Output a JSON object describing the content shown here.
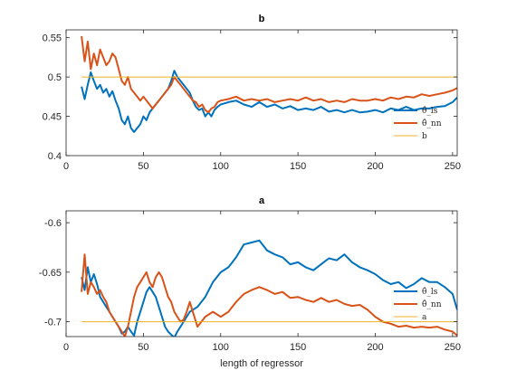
{
  "chart_data": [
    {
      "type": "line",
      "title": "b",
      "xlabel": "",
      "ylabel": "",
      "xlim": [
        0,
        253
      ],
      "ylim": [
        0.4,
        0.56
      ],
      "xticks": [
        "0",
        "50",
        "100",
        "150",
        "200",
        "250"
      ],
      "yticks": [
        "0.4",
        "0.45",
        "0.5",
        "0.55"
      ],
      "legend_position": "bottom-right",
      "grid": false,
      "series": [
        {
          "name": "θ̂_ls",
          "color": "#0072BD",
          "x": [
            10,
            12,
            14,
            16,
            18,
            20,
            22,
            24,
            26,
            28,
            30,
            32,
            34,
            36,
            38,
            40,
            42,
            44,
            46,
            48,
            50,
            52,
            54,
            56,
            58,
            60,
            62,
            64,
            66,
            68,
            70,
            72,
            74,
            76,
            78,
            80,
            82,
            84,
            86,
            88,
            90,
            92,
            94,
            96,
            98,
            100,
            105,
            110,
            115,
            120,
            125,
            130,
            135,
            140,
            145,
            150,
            155,
            160,
            165,
            170,
            175,
            180,
            185,
            190,
            195,
            200,
            205,
            210,
            215,
            220,
            225,
            230,
            235,
            240,
            245,
            250,
            253
          ],
          "y": [
            0.488,
            0.472,
            0.49,
            0.506,
            0.495,
            0.485,
            0.49,
            0.48,
            0.485,
            0.475,
            0.482,
            0.47,
            0.46,
            0.445,
            0.44,
            0.45,
            0.435,
            0.43,
            0.435,
            0.44,
            0.45,
            0.445,
            0.455,
            0.46,
            0.465,
            0.47,
            0.475,
            0.48,
            0.485,
            0.495,
            0.508,
            0.5,
            0.495,
            0.49,
            0.485,
            0.48,
            0.47,
            0.462,
            0.458,
            0.46,
            0.45,
            0.455,
            0.45,
            0.458,
            0.462,
            0.465,
            0.468,
            0.47,
            0.465,
            0.462,
            0.468,
            0.462,
            0.465,
            0.46,
            0.463,
            0.458,
            0.46,
            0.458,
            0.462,
            0.456,
            0.458,
            0.455,
            0.458,
            0.455,
            0.456,
            0.458,
            0.455,
            0.46,
            0.458,
            0.462,
            0.458,
            0.46,
            0.46,
            0.462,
            0.463,
            0.468,
            0.474
          ]
        },
        {
          "name": "θ̂_nn",
          "color": "#D95319",
          "x": [
            10,
            12,
            14,
            16,
            18,
            20,
            22,
            24,
            26,
            28,
            30,
            32,
            34,
            36,
            38,
            40,
            42,
            44,
            46,
            48,
            50,
            52,
            54,
            56,
            58,
            60,
            62,
            64,
            66,
            68,
            70,
            72,
            74,
            76,
            78,
            80,
            82,
            84,
            86,
            88,
            90,
            92,
            94,
            96,
            98,
            100,
            105,
            110,
            115,
            120,
            125,
            130,
            135,
            140,
            145,
            150,
            155,
            160,
            165,
            170,
            175,
            180,
            185,
            190,
            195,
            200,
            205,
            210,
            215,
            220,
            225,
            230,
            235,
            240,
            245,
            250,
            253
          ],
          "y": [
            0.552,
            0.52,
            0.545,
            0.51,
            0.53,
            0.515,
            0.535,
            0.525,
            0.515,
            0.52,
            0.53,
            0.525,
            0.51,
            0.495,
            0.49,
            0.5,
            0.485,
            0.48,
            0.475,
            0.47,
            0.475,
            0.47,
            0.465,
            0.46,
            0.465,
            0.47,
            0.475,
            0.48,
            0.485,
            0.49,
            0.5,
            0.495,
            0.49,
            0.485,
            0.48,
            0.475,
            0.47,
            0.468,
            0.462,
            0.465,
            0.458,
            0.455,
            0.46,
            0.462,
            0.468,
            0.47,
            0.472,
            0.475,
            0.47,
            0.472,
            0.47,
            0.472,
            0.468,
            0.47,
            0.472,
            0.47,
            0.474,
            0.47,
            0.472,
            0.468,
            0.47,
            0.468,
            0.472,
            0.47,
            0.47,
            0.472,
            0.47,
            0.474,
            0.472,
            0.475,
            0.474,
            0.478,
            0.476,
            0.478,
            0.48,
            0.483,
            0.486
          ]
        },
        {
          "name": "b",
          "color": "#EDB120",
          "x": [
            10,
            253
          ],
          "y": [
            0.5,
            0.5
          ]
        }
      ]
    },
    {
      "type": "line",
      "title": "a",
      "xlabel": "length of regressor",
      "ylabel": "",
      "xlim": [
        0,
        253
      ],
      "ylim": [
        -0.715,
        -0.588
      ],
      "xticks": [
        "0",
        "50",
        "100",
        "150",
        "200",
        "250"
      ],
      "yticks": [
        "-0.6",
        "-0.65",
        "-0.7"
      ],
      "legend_position": "bottom-right",
      "grid": false,
      "series": [
        {
          "name": "θ̂_ls",
          "color": "#0072BD",
          "x": [
            10,
            12,
            14,
            16,
            18,
            20,
            22,
            24,
            26,
            28,
            30,
            32,
            34,
            36,
            38,
            40,
            42,
            44,
            46,
            48,
            50,
            52,
            54,
            56,
            58,
            60,
            62,
            64,
            66,
            68,
            70,
            72,
            74,
            76,
            78,
            80,
            85,
            90,
            95,
            100,
            105,
            110,
            115,
            120,
            125,
            130,
            135,
            140,
            145,
            150,
            155,
            160,
            165,
            170,
            175,
            180,
            185,
            190,
            195,
            200,
            205,
            210,
            215,
            220,
            225,
            230,
            235,
            240,
            245,
            250,
            253
          ],
          "y": [
            -0.655,
            -0.668,
            -0.645,
            -0.66,
            -0.652,
            -0.662,
            -0.675,
            -0.68,
            -0.685,
            -0.69,
            -0.695,
            -0.7,
            -0.705,
            -0.712,
            -0.71,
            -0.705,
            -0.71,
            -0.714,
            -0.7,
            -0.69,
            -0.68,
            -0.67,
            -0.665,
            -0.67,
            -0.675,
            -0.685,
            -0.695,
            -0.705,
            -0.71,
            -0.713,
            -0.716,
            -0.71,
            -0.705,
            -0.7,
            -0.695,
            -0.69,
            -0.685,
            -0.675,
            -0.66,
            -0.65,
            -0.645,
            -0.635,
            -0.622,
            -0.62,
            -0.618,
            -0.628,
            -0.632,
            -0.635,
            -0.642,
            -0.64,
            -0.645,
            -0.648,
            -0.642,
            -0.636,
            -0.638,
            -0.632,
            -0.64,
            -0.645,
            -0.648,
            -0.652,
            -0.658,
            -0.662,
            -0.66,
            -0.666,
            -0.662,
            -0.656,
            -0.66,
            -0.66,
            -0.665,
            -0.672,
            -0.688
          ]
        },
        {
          "name": "θ̂_nn",
          "color": "#D95319",
          "x": [
            10,
            12,
            14,
            16,
            18,
            20,
            22,
            24,
            26,
            28,
            30,
            32,
            34,
            36,
            38,
            40,
            42,
            44,
            46,
            48,
            50,
            52,
            54,
            56,
            58,
            60,
            62,
            64,
            66,
            68,
            70,
            72,
            74,
            76,
            78,
            80,
            85,
            90,
            95,
            100,
            105,
            110,
            115,
            120,
            125,
            130,
            135,
            140,
            145,
            150,
            155,
            160,
            165,
            170,
            175,
            180,
            185,
            190,
            195,
            200,
            205,
            210,
            215,
            220,
            225,
            230,
            235,
            240,
            245,
            250,
            253
          ],
          "y": [
            -0.67,
            -0.632,
            -0.672,
            -0.66,
            -0.665,
            -0.672,
            -0.668,
            -0.675,
            -0.68,
            -0.69,
            -0.695,
            -0.7,
            -0.705,
            -0.71,
            -0.715,
            -0.705,
            -0.69,
            -0.675,
            -0.665,
            -0.66,
            -0.655,
            -0.65,
            -0.66,
            -0.665,
            -0.655,
            -0.65,
            -0.655,
            -0.665,
            -0.675,
            -0.68,
            -0.69,
            -0.695,
            -0.7,
            -0.698,
            -0.69,
            -0.68,
            -0.705,
            -0.695,
            -0.69,
            -0.695,
            -0.69,
            -0.68,
            -0.672,
            -0.668,
            -0.665,
            -0.668,
            -0.672,
            -0.67,
            -0.676,
            -0.675,
            -0.678,
            -0.68,
            -0.676,
            -0.68,
            -0.678,
            -0.682,
            -0.684,
            -0.683,
            -0.688,
            -0.695,
            -0.7,
            -0.702,
            -0.705,
            -0.704,
            -0.706,
            -0.705,
            -0.706,
            -0.705,
            -0.708,
            -0.71,
            -0.714
          ]
        },
        {
          "name": "a",
          "color": "#EDB120",
          "x": [
            10,
            253
          ],
          "y": [
            -0.7,
            -0.7
          ]
        }
      ]
    }
  ]
}
